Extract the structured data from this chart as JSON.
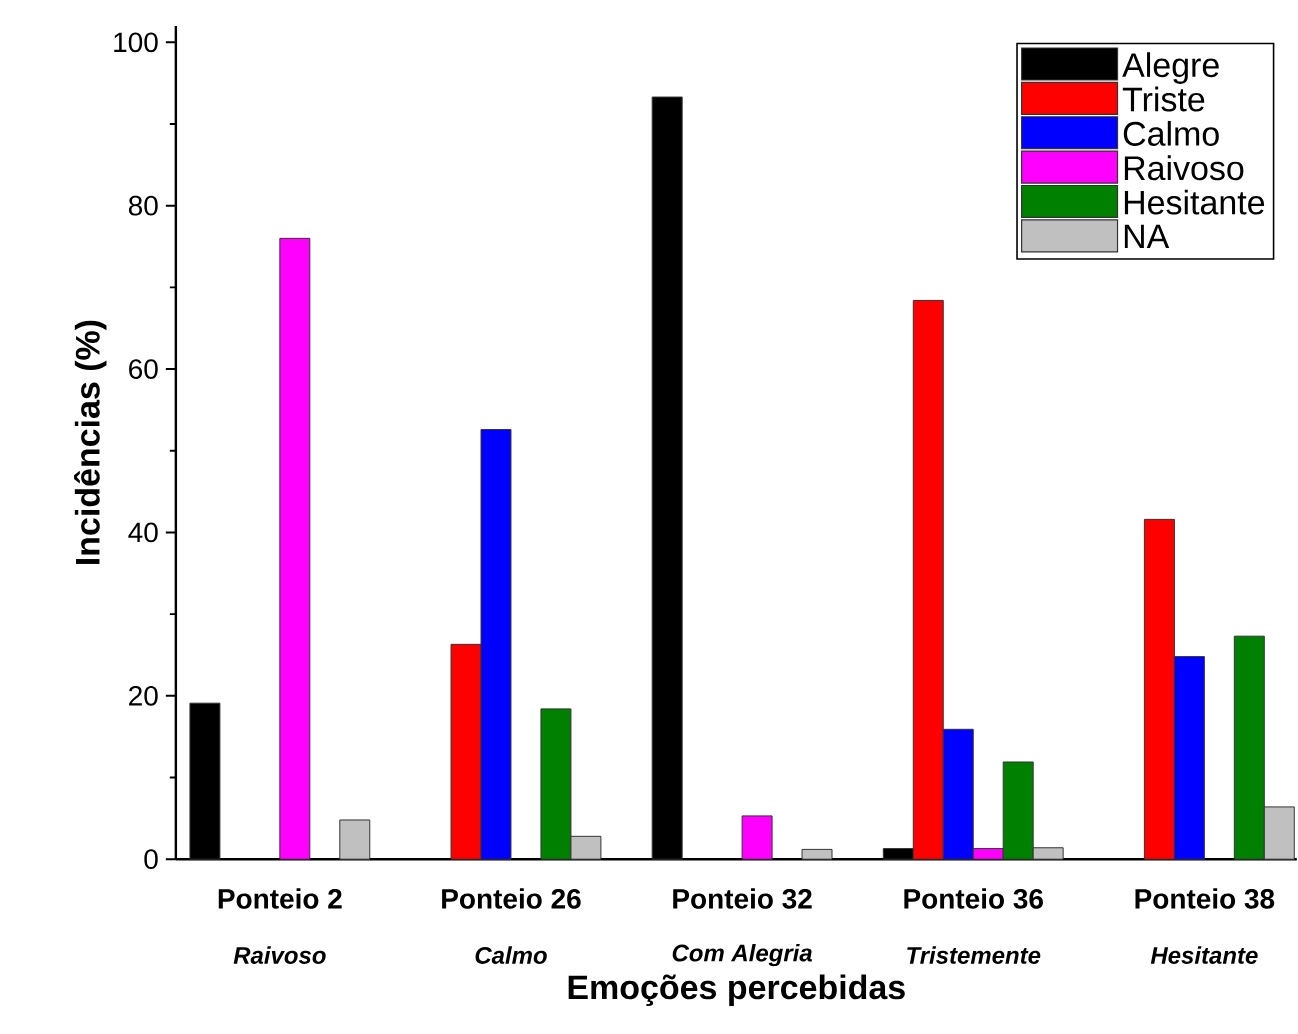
{
  "chart_data": {
    "type": "bar",
    "xlabel": "Emoções percebidas",
    "ylabel": "Incidências (%)",
    "categories": [
      "Ponteio 2",
      "Ponteio 26",
      "Ponteio 32",
      "Ponteio 36",
      "Ponteio 38"
    ],
    "annotations": [
      "Raivoso",
      "Calmo",
      "Com Alegria",
      "Tristemente",
      "Hesitante"
    ],
    "series": [
      {
        "name": "Alegre",
        "color": "#000000",
        "values": [
          19.1,
          0,
          93.3,
          1.3,
          0
        ]
      },
      {
        "name": "Triste",
        "color": "#ff0000",
        "values": [
          0,
          26.3,
          0,
          68.4,
          41.6
        ]
      },
      {
        "name": "Calmo",
        "color": "#0000ff",
        "values": [
          0,
          52.6,
          0,
          15.9,
          24.8
        ]
      },
      {
        "name": "Raivoso",
        "color": "#ff00ff",
        "values": [
          76.0,
          0,
          5.3,
          1.3,
          0
        ]
      },
      {
        "name": "Hesitante",
        "color": "#008000",
        "values": [
          0,
          18.4,
          0,
          11.9,
          27.3
        ]
      },
      {
        "name": "NA",
        "color": "#c0c0c0",
        "values": [
          4.8,
          2.8,
          1.2,
          1.4,
          6.4
        ]
      }
    ],
    "ylim": [
      0,
      102
    ],
    "yticks": [
      0,
      20,
      40,
      60,
      80,
      100
    ],
    "legend": "top right"
  }
}
